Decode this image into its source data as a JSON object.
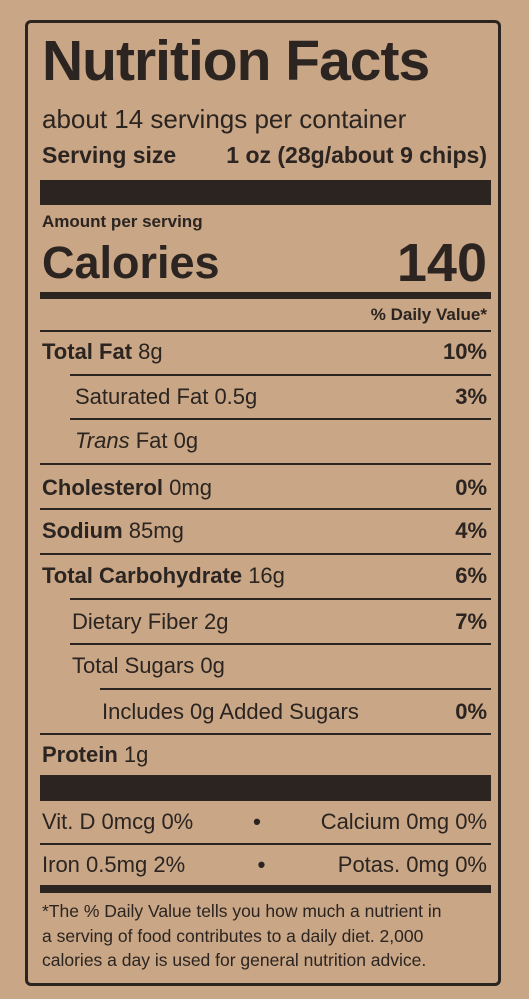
{
  "title": "Nutrition Facts",
  "servings": "about 14 servings per container",
  "serving_size": {
    "label": "Serving size",
    "value": "1 oz (28g/about 9 chips)"
  },
  "amount_per_serving": "Amount per serving",
  "calories": {
    "label": "Calories",
    "value": "140"
  },
  "daily_value_header": "% Daily Value*",
  "nutrients": [
    {
      "name": "Total Fat",
      "amount": "8g",
      "dv": "10%"
    },
    {
      "name": "Saturated Fat",
      "amount": "0.5g",
      "dv": "3%"
    },
    {
      "prefix": "Trans",
      "name": "Fat",
      "amount": "0g"
    },
    {
      "name": "Cholesterol",
      "amount": "0mg",
      "dv": "0%"
    },
    {
      "name": "Sodium",
      "amount": "85mg",
      "dv": "4%"
    },
    {
      "name": "Total Carbohydrate",
      "amount": "16g",
      "dv": "6%"
    },
    {
      "name": "Dietary Fiber",
      "amount": "2g",
      "dv": "7%"
    },
    {
      "name": "Total Sugars",
      "amount": "0g"
    },
    {
      "name": "Includes 0g Added Sugars",
      "dv": "0%"
    },
    {
      "name": "Protein",
      "amount": "1g"
    }
  ],
  "vitamins": [
    [
      {
        "name": "Vit. D",
        "amount": "0mcg",
        "dv": "0%"
      },
      {
        "name": "Calcium",
        "amount": "0mg",
        "dv": "0%"
      }
    ],
    [
      {
        "name": "Iron",
        "amount": "0.5mg",
        "dv": "2%"
      },
      {
        "name": "Potas.",
        "amount": "0mg",
        "dv": "0%"
      }
    ]
  ],
  "footnote": [
    "*The % Daily Value tells you how much a nutrient in",
    "a serving of food contributes to a daily diet. 2,000",
    "calories a day is used for general nutrition advice."
  ]
}
